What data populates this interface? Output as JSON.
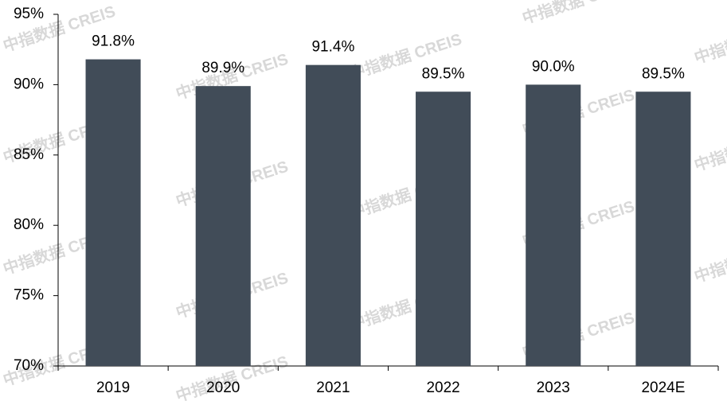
{
  "chart_data": {
    "type": "bar",
    "categories": [
      "2019",
      "2020",
      "2021",
      "2022",
      "2023",
      "2024E"
    ],
    "values": [
      91.8,
      89.9,
      91.4,
      89.5,
      90.0,
      89.5
    ],
    "value_labels": [
      "91.8%",
      "89.9%",
      "91.4%",
      "89.5%",
      "90.0%",
      "89.5%"
    ],
    "color": "#414c58",
    "ylim": [
      70,
      95
    ],
    "yticks": [
      {
        "value": 70,
        "label": "70%"
      },
      {
        "value": 75,
        "label": "75%"
      },
      {
        "value": 80,
        "label": "80%"
      },
      {
        "value": 85,
        "label": "85%"
      },
      {
        "value": 90,
        "label": "90%"
      },
      {
        "value": 95,
        "label": "95%"
      }
    ],
    "grid": false,
    "watermark": "中指数据 CREIS"
  }
}
